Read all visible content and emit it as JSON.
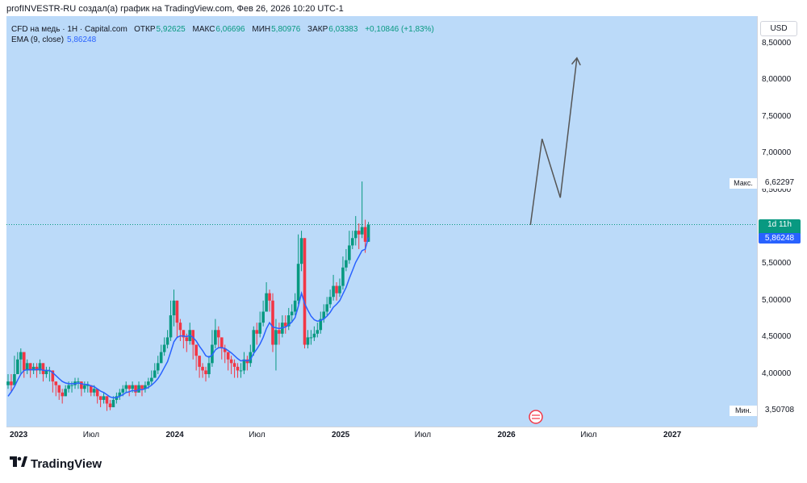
{
  "header": {
    "text": "profINVESTR-RU создал(а) график на TradingView.com, Фев 26, 2026 10:20 UTC-1"
  },
  "legend": {
    "symbol": "CFD на медь · 1H · Capital.com",
    "open_label": "ОТКР",
    "open": "5,92625",
    "high_label": "МАКС",
    "high": "6,06696",
    "low_label": "МИН",
    "low": "5,80976",
    "close_label": "ЗАКР",
    "close": "6,03383",
    "change": "+0,10846 (+1,83%)",
    "ema_label": "EMA (9, close)",
    "ema_value": "5,86248"
  },
  "currency": "USD",
  "price_ticks": [
    "8,50000",
    "8,00000",
    "7,50000",
    "7,00000",
    "6,50000",
    "5,50000",
    "5,00000",
    "4,50000",
    "4,00000"
  ],
  "tags": {
    "max_label": "Макс.",
    "max_value": "6,62297",
    "min_label": "Мин.",
    "min_value": "3,50708",
    "countdown": "1d 11h",
    "ema_value": "5,86248"
  },
  "time_labels": [
    {
      "text": "2023",
      "bold": true
    },
    {
      "text": "Июл",
      "bold": false
    },
    {
      "text": "2024",
      "bold": true
    },
    {
      "text": "Июл",
      "bold": false
    },
    {
      "text": "2025",
      "bold": true
    },
    {
      "text": "Июл",
      "bold": false
    },
    {
      "text": "2026",
      "bold": true
    },
    {
      "text": "Июл",
      "bold": false
    },
    {
      "text": "2027",
      "bold": true
    }
  ],
  "brand": "TradingView",
  "colors": {
    "up": "#089981",
    "down": "#f23645",
    "ema": "#2962ff",
    "bg": "#bbdaf9",
    "projection": "#555555"
  },
  "chart_data": {
    "type": "candlestick",
    "title": "CFD на медь · 1H · Capital.com",
    "ylabel": "USD",
    "ylim": [
      3.3,
      8.8
    ],
    "x_start": 2023.0,
    "x_step": 0.01923,
    "closes": [
      3.9,
      3.85,
      4.0,
      4.2,
      4.3,
      4.05,
      4.15,
      4.05,
      4.1,
      4.05,
      4.15,
      4.0,
      4.05,
      4.05,
      3.9,
      3.85,
      3.75,
      3.7,
      3.8,
      3.85,
      3.85,
      3.9,
      3.9,
      3.8,
      3.85,
      3.85,
      3.75,
      3.8,
      3.7,
      3.65,
      3.7,
      3.6,
      3.55,
      3.65,
      3.7,
      3.75,
      3.8,
      3.85,
      3.8,
      3.85,
      3.75,
      3.85,
      3.8,
      3.85,
      3.9,
      3.95,
      4.05,
      4.15,
      4.3,
      4.4,
      4.5,
      4.8,
      5.0,
      4.7,
      4.6,
      4.5,
      4.45,
      4.6,
      4.4,
      4.25,
      4.1,
      4.05,
      4.0,
      4.15,
      4.4,
      4.6,
      4.5,
      4.35,
      4.3,
      4.2,
      4.15,
      4.1,
      4.05,
      4.05,
      4.2,
      4.15,
      4.3,
      4.6,
      4.55,
      4.7,
      4.85,
      5.1,
      5.0,
      4.4,
      4.6,
      4.55,
      4.7,
      4.65,
      4.8,
      4.85,
      5.0,
      5.5,
      5.85,
      4.4,
      4.5,
      4.5,
      4.55,
      4.6,
      4.75,
      4.85,
      4.95,
      5.05,
      5.2,
      5.1,
      5.2,
      5.45,
      5.55,
      5.75,
      5.85,
      5.95,
      5.9,
      6.0,
      5.8,
      6.03
    ],
    "highs": [
      4.0,
      4.0,
      4.25,
      4.3,
      4.35,
      4.2,
      4.2,
      4.15,
      4.15,
      4.15,
      4.2,
      4.1,
      4.1,
      4.1,
      4.0,
      3.9,
      3.85,
      3.8,
      3.85,
      3.9,
      3.9,
      3.95,
      3.95,
      3.9,
      3.9,
      3.9,
      3.85,
      3.85,
      3.8,
      3.7,
      3.75,
      3.7,
      3.65,
      3.7,
      3.75,
      3.8,
      3.85,
      3.9,
      3.85,
      3.9,
      3.85,
      3.9,
      3.85,
      3.9,
      3.95,
      4.05,
      4.15,
      4.25,
      4.4,
      4.5,
      4.6,
      5.0,
      5.15,
      4.95,
      4.75,
      4.6,
      4.55,
      4.7,
      4.6,
      4.4,
      4.25,
      4.15,
      4.1,
      4.25,
      4.6,
      4.75,
      4.65,
      4.5,
      4.4,
      4.3,
      4.25,
      4.2,
      4.15,
      4.15,
      4.3,
      4.25,
      4.4,
      4.65,
      4.7,
      4.85,
      5.0,
      5.25,
      5.15,
      5.1,
      4.75,
      4.7,
      4.8,
      4.8,
      4.9,
      4.95,
      5.1,
      5.9,
      5.95,
      5.85,
      4.6,
      4.6,
      4.65,
      4.7,
      4.85,
      4.95,
      5.05,
      5.15,
      5.35,
      5.25,
      5.3,
      5.6,
      5.7,
      5.95,
      5.95,
      6.15,
      6.05,
      6.62,
      6.1,
      6.07
    ],
    "lows": [
      3.8,
      3.75,
      3.85,
      4.0,
      4.0,
      3.95,
      4.0,
      3.95,
      4.0,
      3.95,
      4.0,
      3.9,
      3.95,
      3.9,
      3.75,
      3.7,
      3.65,
      3.6,
      3.7,
      3.75,
      3.75,
      3.8,
      3.8,
      3.7,
      3.75,
      3.75,
      3.7,
      3.7,
      3.6,
      3.55,
      3.6,
      3.5,
      3.51,
      3.55,
      3.6,
      3.65,
      3.7,
      3.75,
      3.7,
      3.75,
      3.7,
      3.75,
      3.7,
      3.75,
      3.8,
      3.85,
      3.95,
      4.0,
      4.15,
      4.25,
      4.35,
      4.45,
      4.65,
      4.5,
      4.45,
      4.35,
      4.3,
      4.4,
      4.2,
      4.05,
      3.95,
      3.95,
      3.9,
      3.95,
      4.1,
      4.35,
      4.35,
      4.2,
      4.15,
      4.05,
      4.0,
      3.95,
      3.95,
      3.95,
      4.0,
      4.05,
      4.1,
      4.25,
      4.4,
      4.5,
      4.65,
      4.85,
      4.85,
      4.3,
      4.05,
      4.4,
      4.5,
      4.55,
      4.6,
      4.7,
      4.8,
      4.95,
      5.4,
      4.35,
      4.35,
      4.4,
      4.45,
      4.5,
      4.55,
      4.7,
      4.8,
      4.9,
      5.0,
      5.0,
      5.05,
      5.15,
      5.4,
      5.5,
      5.7,
      5.75,
      5.7,
      5.85,
      5.65,
      5.81
    ],
    "ema": [
      3.7,
      3.76,
      3.83,
      3.92,
      4.0,
      4.05,
      4.06,
      4.06,
      4.06,
      4.06,
      4.07,
      4.05,
      4.05,
      4.05,
      4.02,
      3.98,
      3.94,
      3.9,
      3.88,
      3.87,
      3.87,
      3.87,
      3.88,
      3.87,
      3.86,
      3.86,
      3.84,
      3.83,
      3.8,
      3.77,
      3.75,
      3.72,
      3.69,
      3.68,
      3.68,
      3.7,
      3.72,
      3.75,
      3.76,
      3.78,
      3.77,
      3.79,
      3.79,
      3.8,
      3.82,
      3.85,
      3.89,
      3.94,
      4.01,
      4.09,
      4.17,
      4.3,
      4.44,
      4.5,
      4.52,
      4.52,
      4.51,
      4.53,
      4.5,
      4.45,
      4.38,
      4.32,
      4.25,
      4.23,
      4.26,
      4.33,
      4.36,
      4.36,
      4.35,
      4.32,
      4.29,
      4.25,
      4.21,
      4.18,
      4.19,
      4.18,
      4.2,
      4.28,
      4.34,
      4.41,
      4.5,
      4.62,
      4.7,
      4.64,
      4.63,
      4.62,
      4.63,
      4.64,
      4.67,
      4.71,
      4.77,
      4.92,
      5.1,
      4.96,
      4.87,
      4.79,
      4.74,
      4.72,
      4.73,
      4.75,
      4.79,
      4.84,
      4.91,
      4.95,
      5.0,
      5.09,
      5.18,
      5.3,
      5.41,
      5.52,
      5.6,
      5.68,
      5.7,
      5.86
    ],
    "projection": [
      [
        2026.15,
        6.03
      ],
      [
        2026.22,
        7.2
      ],
      [
        2026.33,
        6.4
      ],
      [
        2026.43,
        8.3
      ]
    ],
    "current_price": 6.03383,
    "ema_last": 5.86248,
    "max": 6.62297,
    "min": 3.50708
  }
}
